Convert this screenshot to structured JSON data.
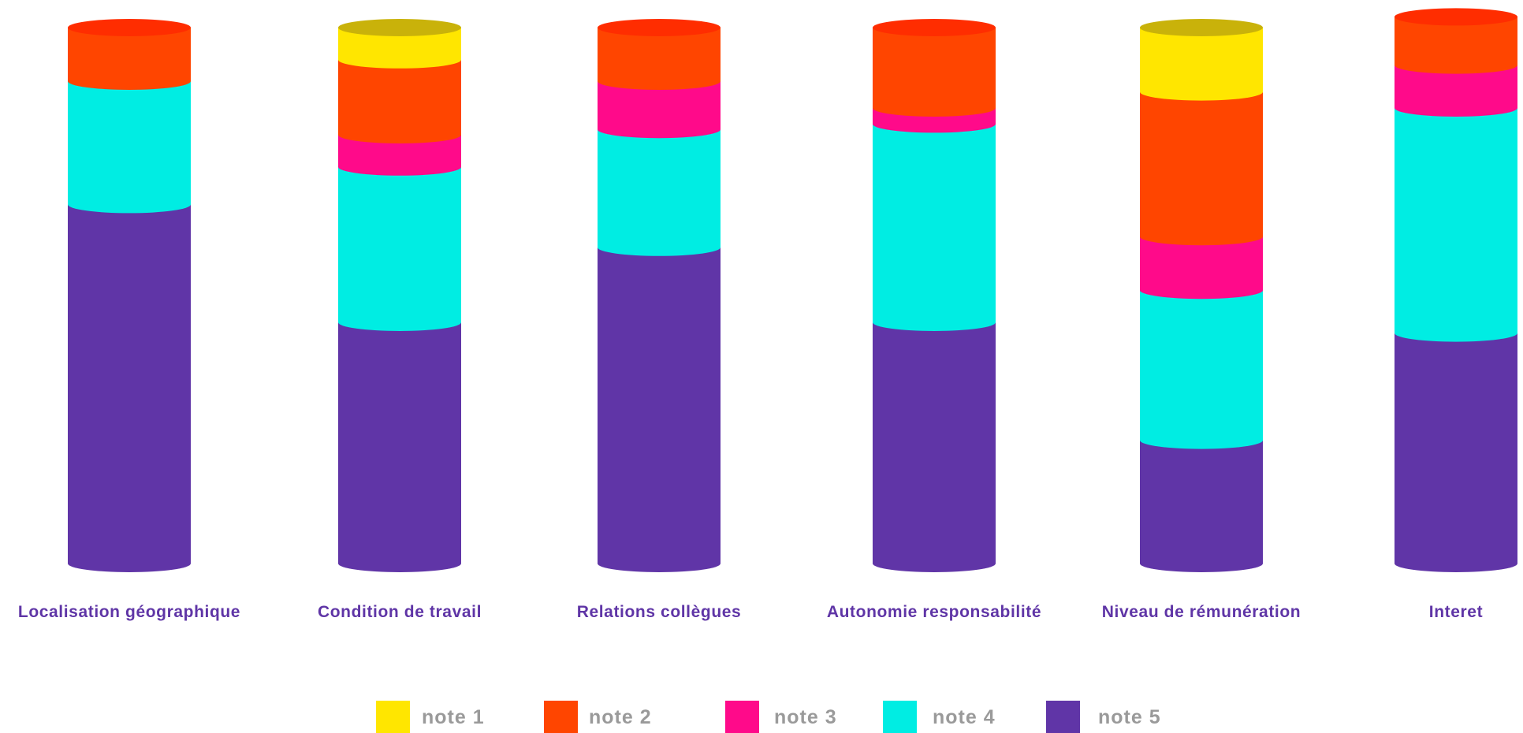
{
  "chart_data": {
    "type": "bar",
    "stacked": true,
    "style": "3d-cylinder",
    "categories": [
      "Localisation géographique",
      "Condition de travail",
      "Relations collègues",
      "Autonomie responsabilité",
      "Niveau de rémunération",
      "Interet"
    ],
    "series": [
      {
        "name": "note 1",
        "color": "#ffe600",
        "cap_color": "#c9b20a",
        "values": [
          0,
          6,
          0,
          0,
          12,
          0
        ]
      },
      {
        "name": "note 2",
        "color": "#ff4500",
        "cap_color": "#ff2d00",
        "values": [
          10,
          14,
          10,
          15,
          27,
          9
        ]
      },
      {
        "name": "note 3",
        "color": "#ff0a8a",
        "cap_color": "#e6077c",
        "values": [
          0,
          6,
          9,
          3,
          10,
          8
        ]
      },
      {
        "name": "note 4",
        "color": "#00ede3",
        "cap_color": "#00c9c0",
        "values": [
          23,
          29,
          22,
          37,
          28,
          42
        ]
      },
      {
        "name": "note 5",
        "color": "#6035a7",
        "cap_color": "#5a2f9e",
        "values": [
          67,
          45,
          59,
          45,
          23,
          43
        ]
      }
    ],
    "legend_position": "bottom-center",
    "grid": false,
    "axes_visible": false
  }
}
